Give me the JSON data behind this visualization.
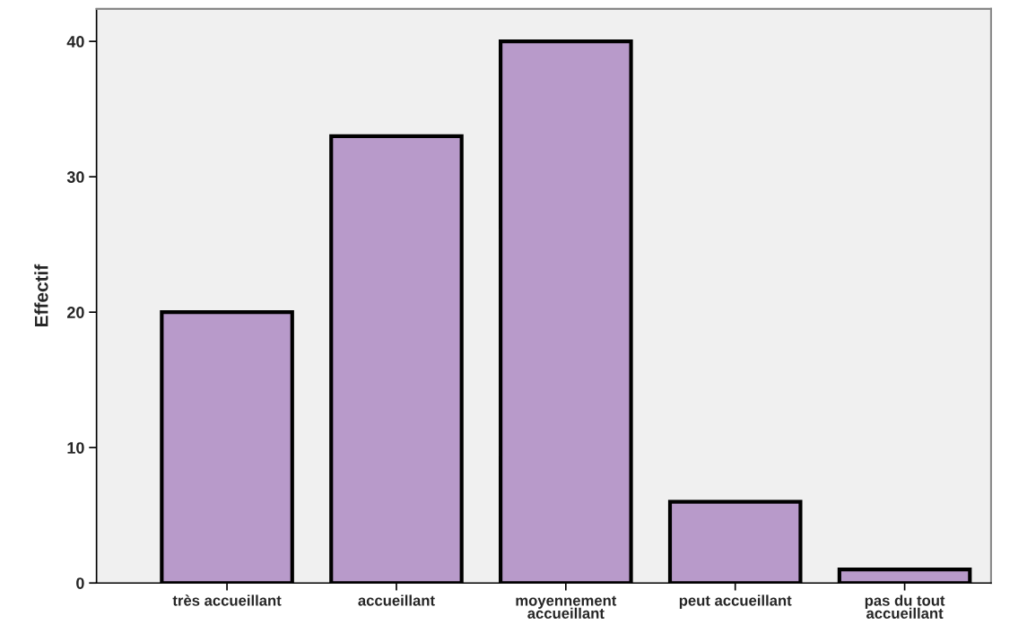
{
  "chart_data": {
    "type": "bar",
    "ylabel": "Effectif",
    "categories": [
      "très accueillant",
      "accueillant",
      "moyennement\naccueillant",
      "peut accueillant",
      "pas du tout\naccueillant"
    ],
    "values": [
      20,
      33,
      40,
      6,
      1
    ],
    "color": "#b89aca",
    "ylim": [
      0,
      42.4
    ],
    "yticks": [
      0,
      10,
      20,
      30,
      40
    ],
    "grid": false,
    "legend": false
  }
}
